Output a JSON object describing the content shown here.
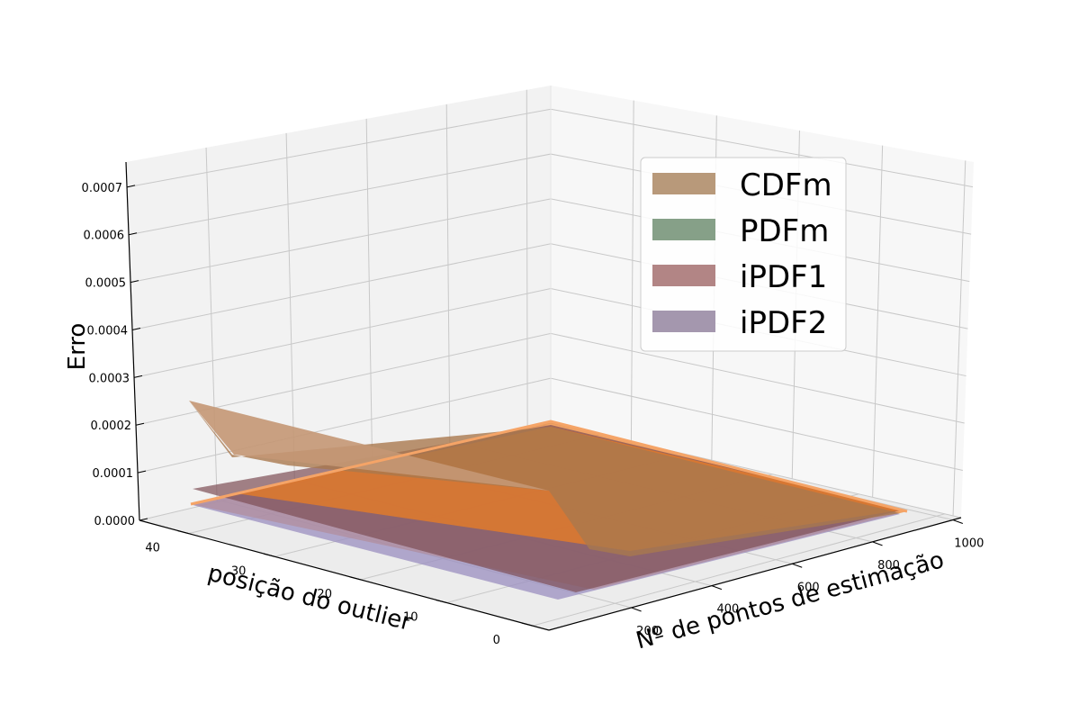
{
  "chart_data": {
    "type": "surface3d",
    "zlabel": "Erro",
    "ylabel": "posição do outlier",
    "xlabel": "Nº de pontos de estimação",
    "z_ticks": [
      "0.0000",
      "0.0001",
      "0.0002",
      "0.0003",
      "0.0004",
      "0.0005",
      "0.0006",
      "0.0007"
    ],
    "y_ticks": [
      "0",
      "10",
      "20",
      "30",
      "40"
    ],
    "x_ticks": [
      "200",
      "400",
      "600",
      "800",
      "1000"
    ],
    "zlim": [
      0,
      0.0007
    ],
    "legend_position": "upper-right",
    "series": [
      {
        "name": "CDFm",
        "color": "#b8997a",
        "surface_color": "#a9784d",
        "corner_values": {
          "x200_y0": 1e-05,
          "x200_y48": 0.00023,
          "x1000_y0": 0.0,
          "x1000_y48": 0.0
        }
      },
      {
        "name": "PDFm",
        "color": "#86a088",
        "surface_color": "#f28630",
        "corner_values": {
          "x200_y0": 0.0,
          "x200_y48": 0.0,
          "x1000_y0": 0.0,
          "x1000_y48": 0.0
        }
      },
      {
        "name": "iPDF1",
        "color": "#b28585",
        "surface_color": "#8a5a5e",
        "corner_values": {
          "x200_y0": 0.0,
          "x200_y48": 6e-05,
          "x1000_y0": 0.0,
          "x1000_y48": 0.0
        }
      },
      {
        "name": "iPDF2",
        "color": "#a497ae",
        "surface_color": "#9588b8",
        "corner_values": {
          "x200_y0": 0.0,
          "x200_y48": 0.0,
          "x1000_y0": 0.0,
          "x1000_y48": 0.0
        }
      }
    ]
  }
}
